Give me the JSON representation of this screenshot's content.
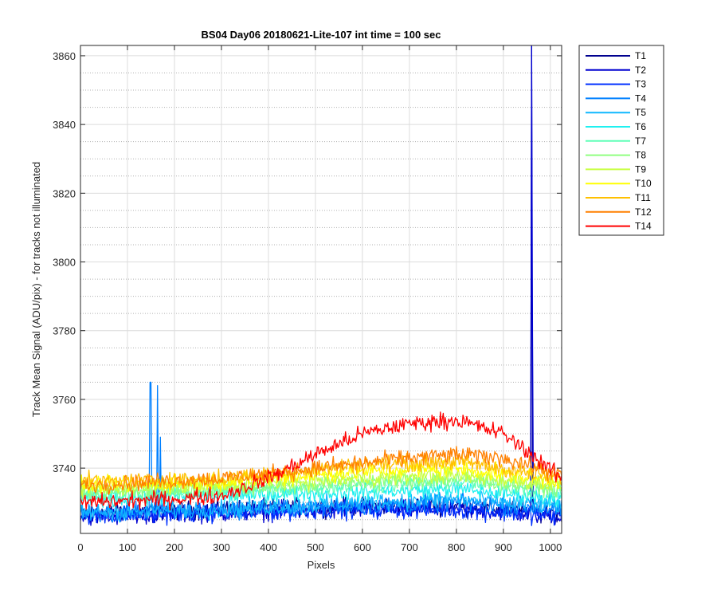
{
  "chart_data": {
    "type": "line",
    "title": "BS04 Day06 20180621-Lite-107 int time = 100 sec",
    "xlabel": "Pixels",
    "ylabel": "Track Mean Signal (ADU/pix) - for tracks not illuminated",
    "xlim": [
      0,
      1024
    ],
    "ylim": [
      3721,
      3863
    ],
    "xticks": [
      0,
      100,
      200,
      300,
      400,
      500,
      600,
      700,
      800,
      900,
      1000
    ],
    "yticks": [
      3740,
      3760,
      3780,
      3800,
      3820,
      3840,
      3860
    ],
    "grid": "major solid, minor dotted",
    "legend_position": "outside-right-top",
    "series": [
      {
        "name": "T1",
        "color": "#00008f",
        "profile": [
          [
            0,
            3727
          ],
          [
            300,
            3728
          ],
          [
            600,
            3729
          ],
          [
            800,
            3729
          ],
          [
            1024,
            3727
          ]
        ],
        "noise": 2.0,
        "spikes": [
          [
            960,
            3863
          ]
        ]
      },
      {
        "name": "T2",
        "color": "#0000d0",
        "profile": [
          [
            0,
            3726
          ],
          [
            300,
            3727
          ],
          [
            600,
            3728
          ],
          [
            800,
            3728
          ],
          [
            1024,
            3726
          ]
        ],
        "noise": 2.0,
        "spikes": [
          [
            961,
            3863
          ],
          [
            962,
            3780
          ]
        ]
      },
      {
        "name": "T3",
        "color": "#0030ff",
        "profile": [
          [
            0,
            3726
          ],
          [
            300,
            3727
          ],
          [
            600,
            3728
          ],
          [
            800,
            3728
          ],
          [
            1024,
            3726
          ]
        ],
        "noise": 2.0,
        "spikes": []
      },
      {
        "name": "T4",
        "color": "#0080ff",
        "profile": [
          [
            0,
            3727
          ],
          [
            300,
            3728
          ],
          [
            600,
            3729
          ],
          [
            800,
            3730
          ],
          [
            1024,
            3728
          ]
        ],
        "noise": 2.0,
        "spikes": [
          [
            149,
            3765
          ],
          [
            164,
            3764
          ],
          [
            170,
            3749
          ]
        ]
      },
      {
        "name": "T5",
        "color": "#10b8ff",
        "profile": [
          [
            0,
            3727
          ],
          [
            300,
            3728
          ],
          [
            600,
            3730
          ],
          [
            800,
            3731
          ],
          [
            1024,
            3729
          ]
        ],
        "noise": 2.0,
        "spikes": []
      },
      {
        "name": "T6",
        "color": "#20f0f0",
        "profile": [
          [
            0,
            3731
          ],
          [
            300,
            3732
          ],
          [
            600,
            3733
          ],
          [
            800,
            3734
          ],
          [
            1024,
            3731
          ]
        ],
        "noise": 1.8,
        "spikes": []
      },
      {
        "name": "T7",
        "color": "#60ffb8",
        "profile": [
          [
            0,
            3732
          ],
          [
            300,
            3733
          ],
          [
            600,
            3735
          ],
          [
            800,
            3736
          ],
          [
            1024,
            3733
          ]
        ],
        "noise": 1.8,
        "spikes": []
      },
      {
        "name": "T8",
        "color": "#90ff80",
        "profile": [
          [
            0,
            3733
          ],
          [
            300,
            3734
          ],
          [
            600,
            3736
          ],
          [
            800,
            3737
          ],
          [
            1024,
            3734
          ]
        ],
        "noise": 1.8,
        "spikes": []
      },
      {
        "name": "T9",
        "color": "#c8ff40",
        "profile": [
          [
            0,
            3734
          ],
          [
            300,
            3735
          ],
          [
            600,
            3737
          ],
          [
            800,
            3738
          ],
          [
            1024,
            3735
          ]
        ],
        "noise": 1.8,
        "spikes": []
      },
      {
        "name": "T10",
        "color": "#ffff00",
        "profile": [
          [
            0,
            3735
          ],
          [
            300,
            3736
          ],
          [
            600,
            3739
          ],
          [
            800,
            3740
          ],
          [
            1024,
            3736
          ]
        ],
        "noise": 1.8,
        "spikes": []
      },
      {
        "name": "T11",
        "color": "#ffc000",
        "profile": [
          [
            0,
            3736
          ],
          [
            300,
            3737
          ],
          [
            600,
            3741
          ],
          [
            800,
            3742
          ],
          [
            1024,
            3737
          ]
        ],
        "noise": 1.8,
        "spikes": []
      },
      {
        "name": "T12",
        "color": "#ff8000",
        "profile": [
          [
            0,
            3735
          ],
          [
            300,
            3737
          ],
          [
            500,
            3740
          ],
          [
            700,
            3743
          ],
          [
            800,
            3744
          ],
          [
            900,
            3743
          ],
          [
            1024,
            3738
          ]
        ],
        "noise": 1.8,
        "spikes": []
      },
      {
        "name": "T14",
        "color": "#ff0000",
        "profile": [
          [
            0,
            3730
          ],
          [
            200,
            3731
          ],
          [
            300,
            3732
          ],
          [
            400,
            3737
          ],
          [
            500,
            3744
          ],
          [
            600,
            3750
          ],
          [
            700,
            3753
          ],
          [
            800,
            3754
          ],
          [
            900,
            3750
          ],
          [
            960,
            3744
          ],
          [
            1024,
            3737
          ]
        ],
        "noise": 1.8,
        "spikes": []
      }
    ]
  }
}
